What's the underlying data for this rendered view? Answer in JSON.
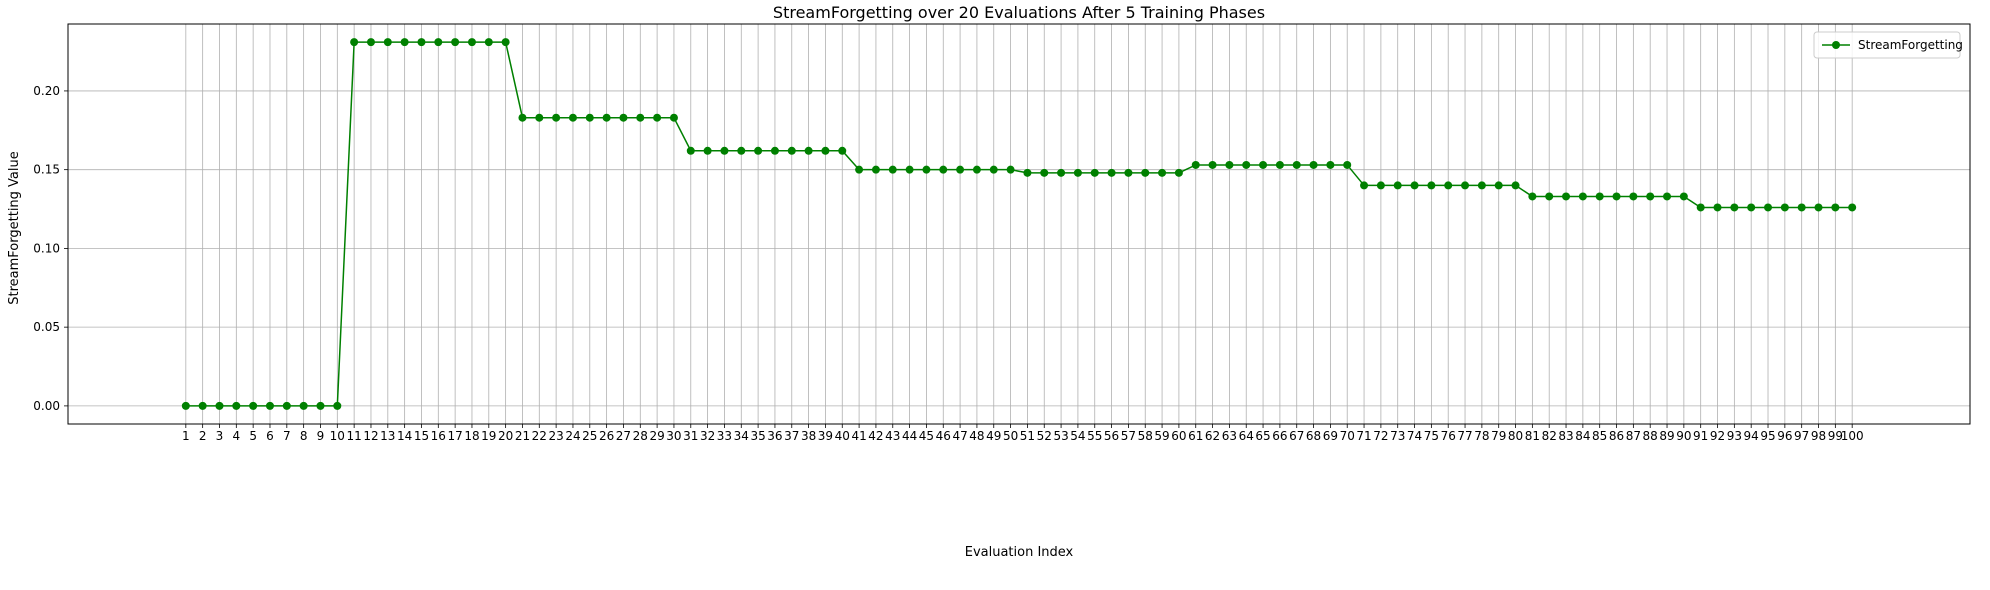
{
  "chart_data": {
    "type": "line",
    "title": "StreamForgetting over 20 Evaluations After 5 Training Phases",
    "xlabel": "Evaluation Index",
    "ylabel": "StreamForgetting Value",
    "xlim": [
      -6,
      107
    ],
    "ylim": [
      -0.0115,
      0.2425
    ],
    "yticks": [
      0.0,
      0.05,
      0.1,
      0.15,
      0.2
    ],
    "ytick_labels": [
      "0.00",
      "0.05",
      "0.10",
      "0.15",
      "0.20"
    ],
    "grid": true,
    "legend": {
      "position": "top-right"
    },
    "series": [
      {
        "name": "StreamForgetting",
        "color": "#008000",
        "marker": "circle",
        "x": [
          1,
          2,
          3,
          4,
          5,
          6,
          7,
          8,
          9,
          10,
          11,
          12,
          13,
          14,
          15,
          16,
          17,
          18,
          19,
          20,
          21,
          22,
          23,
          24,
          25,
          26,
          27,
          28,
          29,
          30,
          31,
          32,
          33,
          34,
          35,
          36,
          37,
          38,
          39,
          40,
          41,
          42,
          43,
          44,
          45,
          46,
          47,
          48,
          49,
          50,
          51,
          52,
          53,
          54,
          55,
          56,
          57,
          58,
          59,
          60,
          61,
          62,
          63,
          64,
          65,
          66,
          67,
          68,
          69,
          70,
          71,
          72,
          73,
          74,
          75,
          76,
          77,
          78,
          79,
          80,
          81,
          82,
          83,
          84,
          85,
          86,
          87,
          88,
          89,
          90,
          91,
          92,
          93,
          94,
          95,
          96,
          97,
          98,
          99,
          100
        ],
        "values": [
          0,
          0,
          0,
          0,
          0,
          0,
          0,
          0,
          0,
          0,
          0.231,
          0.231,
          0.231,
          0.231,
          0.231,
          0.231,
          0.231,
          0.231,
          0.231,
          0.231,
          0.183,
          0.183,
          0.183,
          0.183,
          0.183,
          0.183,
          0.183,
          0.183,
          0.183,
          0.183,
          0.162,
          0.162,
          0.162,
          0.162,
          0.162,
          0.162,
          0.162,
          0.162,
          0.162,
          0.162,
          0.15,
          0.15,
          0.15,
          0.15,
          0.15,
          0.15,
          0.15,
          0.15,
          0.15,
          0.15,
          0.148,
          0.148,
          0.148,
          0.148,
          0.148,
          0.148,
          0.148,
          0.148,
          0.148,
          0.148,
          0.153,
          0.153,
          0.153,
          0.153,
          0.153,
          0.153,
          0.153,
          0.153,
          0.153,
          0.153,
          0.14,
          0.14,
          0.14,
          0.14,
          0.14,
          0.14,
          0.14,
          0.14,
          0.14,
          0.14,
          0.133,
          0.133,
          0.133,
          0.133,
          0.133,
          0.133,
          0.133,
          0.133,
          0.133,
          0.133,
          0.126,
          0.126,
          0.126,
          0.126,
          0.126,
          0.126,
          0.126,
          0.126,
          0.126,
          0.126
        ]
      }
    ]
  }
}
